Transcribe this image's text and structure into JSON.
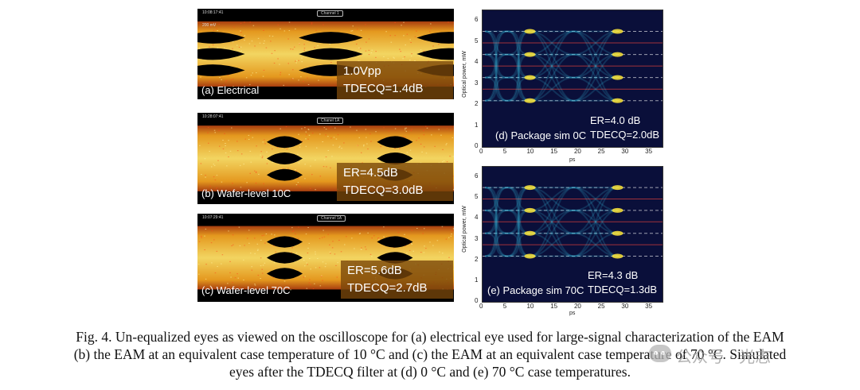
{
  "panels": [
    {
      "label": "(a) Electrical",
      "stat1": "1.0Vpp",
      "stat2": "TDECQ=1.4dB",
      "header": "10:08:17:41",
      "chip": "Channel 1",
      "scale": "200 mV",
      "eyes": 3
    },
    {
      "label": "(b) Wafer-level 10C",
      "stat1": "ER=4.5dB",
      "stat2": "TDECQ=3.0dB",
      "header": "10:28:07:41",
      "chip": "Chanel 1A",
      "eyes": 3
    },
    {
      "label": "(c) Wafer-level 70C",
      "stat1": "ER=5.6dB",
      "stat2": "TDECQ=2.7dB",
      "header": "10:07:29:41",
      "chip": "Channel 1A",
      "eyes": 3
    }
  ],
  "sims": [
    {
      "label": "(d) Package sim 0C",
      "stat1": "ER=4.0 dB",
      "stat2": "TDECQ=2.0dB"
    },
    {
      "label": "(e) Package sim 70C",
      "stat1": "ER=4.3 dB",
      "stat2": "TDECQ=1.3dB"
    }
  ],
  "sim_axes": {
    "ylabel": "Optical power, mW",
    "xlabel": "ps",
    "yticks": [
      "0",
      "1",
      "2",
      "3",
      "4",
      "5",
      "6"
    ],
    "xticks": [
      "0",
      "5",
      "10",
      "15",
      "20",
      "25",
      "30",
      "35"
    ]
  },
  "caption": {
    "line1": "Fig. 4. Un-equalized eyes as viewed on the oscilloscope for (a) electrical eye used for large-signal characterization of the EAM",
    "line2": "(b) the EAM at an equivalent case temperature of 10 °C and (c) the EAM at an equivalent case temperature of 70 °C.  Simulated",
    "line3": "eyes after the TDECQ filter at (d) 0 °C and (e) 70 °C case temperatures."
  },
  "watermark": "公众号 · 光志",
  "colors": {
    "eye_hot": "#ffe066",
    "eye_mid": "#f0a020",
    "eye_dark": "#b04010",
    "sim_bg": "#0a0f3a",
    "sim_trace": "#3ac8e8"
  }
}
